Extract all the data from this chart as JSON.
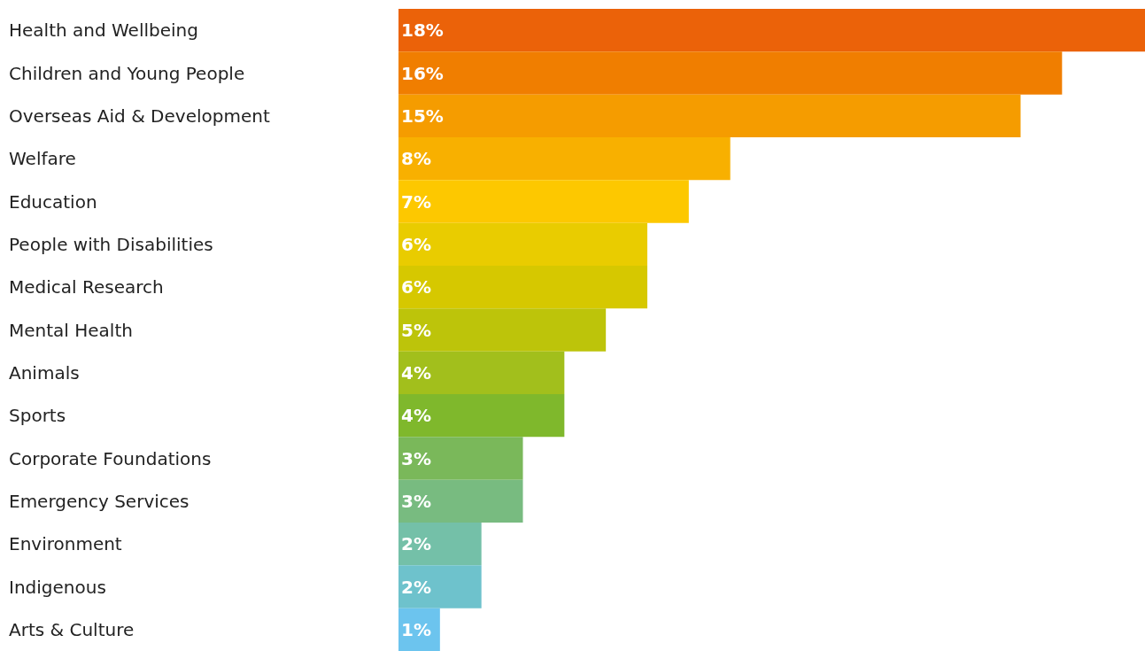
{
  "chart_data": {
    "type": "bar",
    "orientation": "horizontal",
    "categories": [
      "Health and Wellbeing",
      "Children and Young People",
      "Overseas Aid & Development",
      "Welfare",
      "Education",
      "People with Disabilities",
      "Medical Research",
      "Mental Health",
      "Animals",
      "Sports",
      "Corporate Foundations",
      "Emergency Services",
      "Environment",
      "Indigenous",
      "Arts & Culture"
    ],
    "values": [
      18,
      16,
      15,
      8,
      7,
      6,
      6,
      5,
      4,
      4,
      3,
      3,
      2,
      2,
      1
    ],
    "value_labels": [
      "18%",
      "16%",
      "15%",
      "8%",
      "7%",
      "6%",
      "6%",
      "5%",
      "4%",
      "4%",
      "3%",
      "3%",
      "2%",
      "2%",
      "1%"
    ],
    "colors": [
      "#eb6209",
      "#f07e00",
      "#f59c00",
      "#f8b000",
      "#fdc800",
      "#e9cc00",
      "#d6c800",
      "#bdc40a",
      "#a2bf1c",
      "#7fb82c",
      "#7ab85a",
      "#78bb80",
      "#74c0a8",
      "#6ec2cc",
      "#6cc4ee"
    ],
    "xlim": [
      0,
      18
    ]
  }
}
